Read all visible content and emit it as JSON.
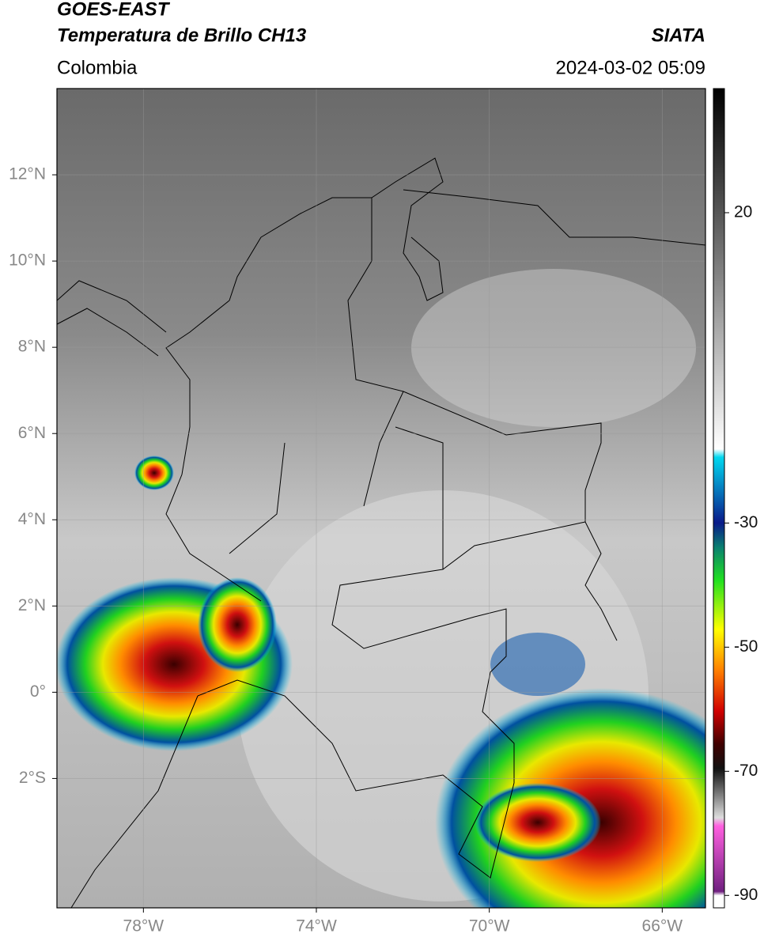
{
  "header": {
    "title": "GOES-EAST",
    "subtitle": "Temperatura de Brillo CH13",
    "agency": "SIATA",
    "region": "Colombia",
    "datetime": "2024-03-02 05:09"
  },
  "map": {
    "xlim": [
      -80,
      -65
    ],
    "ylim": [
      -5,
      14
    ],
    "xticks": [
      {
        "value": -78,
        "label": "78°W"
      },
      {
        "value": -74,
        "label": "74°W"
      },
      {
        "value": -70,
        "label": "70°W"
      },
      {
        "value": -66,
        "label": "66°W"
      }
    ],
    "yticks": [
      {
        "value": 12,
        "label": "12°N"
      },
      {
        "value": 10,
        "label": "10°N"
      },
      {
        "value": 8,
        "label": "8°N"
      },
      {
        "value": 6,
        "label": "6°N"
      },
      {
        "value": 4,
        "label": "4°N"
      },
      {
        "value": 2,
        "label": "2°N"
      },
      {
        "value": 0,
        "label": "0°"
      },
      {
        "value": -2,
        "label": "2°S"
      }
    ]
  },
  "colorbar": {
    "lim": [
      -92,
      40
    ],
    "ticks": [
      20,
      -30,
      -50,
      -70,
      -90
    ]
  }
}
